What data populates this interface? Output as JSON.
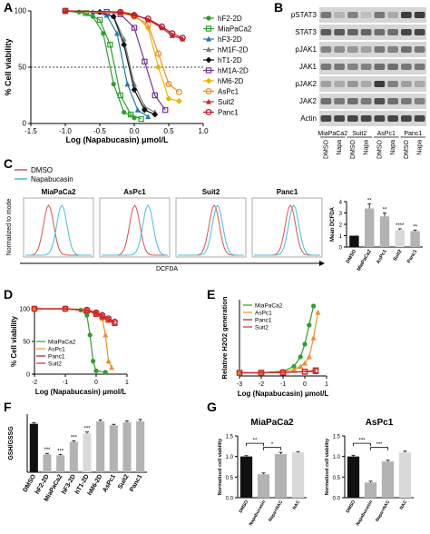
{
  "figure": {
    "panel_labels": [
      "A",
      "B",
      "C",
      "D",
      "E",
      "F",
      "G"
    ],
    "colors": {
      "hF2-2D": "#2ca02c",
      "MiaPaCa2": "#2ca02c",
      "hF3-2D": "#1f77b4",
      "hM1F-2D": "#7f7f7f",
      "hT1-2D": "#111111",
      "hM1A-2D": "#7b3294",
      "hM6-2D": "#e6b800",
      "AsPc1": "#f28e2b",
      "Suit2": "#d62728",
      "Panc1": "#b2182b",
      "DMSO": "#e05050",
      "Napabucasin": "#3fbfe0",
      "bar_black": "#111111",
      "bar_gray": "#b3b3b3",
      "bar_light": "#d9d9d9"
    }
  },
  "chart_data": [
    {
      "id": "A",
      "type": "line",
      "xlabel": "Log (Napabucasin) μmol/L",
      "ylabel": "% Cell viability",
      "xlim": [
        -1.5,
        1.0
      ],
      "ylim": [
        0,
        100
      ],
      "xticks": [
        "-1.5",
        "-1.0",
        "-0.5",
        "0.0",
        "0.5",
        "1.0"
      ],
      "yticks": [
        "0",
        "50",
        "100"
      ],
      "threshold": 50,
      "series": [
        {
          "name": "hF2-2D",
          "x": [
            -1.0,
            -0.8,
            -0.6,
            -0.45,
            -0.3,
            -0.15,
            0.0
          ],
          "y": [
            100,
            99,
            95,
            80,
            35,
            10,
            5
          ]
        },
        {
          "name": "MiaPaCa2",
          "x": [
            -1.0,
            -0.7,
            -0.5,
            -0.35,
            -0.2,
            -0.05,
            0.1
          ],
          "y": [
            100,
            98,
            92,
            70,
            25,
            8,
            4
          ]
        },
        {
          "name": "hF3-2D",
          "x": [
            -1.0,
            -0.6,
            -0.4,
            -0.25,
            -0.1,
            0.05,
            0.2
          ],
          "y": [
            100,
            99,
            96,
            80,
            35,
            12,
            6
          ]
        },
        {
          "name": "hM1F-2D",
          "x": [
            -1.0,
            -0.5,
            -0.3,
            -0.15,
            0.0,
            0.15,
            0.3
          ],
          "y": [
            100,
            99,
            95,
            75,
            35,
            15,
            10
          ]
        },
        {
          "name": "hT1-2D",
          "x": [
            -1.0,
            -0.5,
            -0.3,
            -0.15,
            0.0,
            0.15,
            0.3
          ],
          "y": [
            100,
            99,
            95,
            70,
            30,
            12,
            8
          ]
        },
        {
          "name": "hM1A-2D",
          "x": [
            -1.0,
            -0.4,
            -0.2,
            0.0,
            0.15,
            0.3,
            0.45
          ],
          "y": [
            100,
            99,
            97,
            85,
            55,
            25,
            12
          ]
        },
        {
          "name": "hM6-2D",
          "x": [
            -1.0,
            -0.2,
            0.0,
            0.2,
            0.35,
            0.5,
            0.65
          ],
          "y": [
            100,
            99,
            97,
            85,
            50,
            22,
            20
          ]
        },
        {
          "name": "AsPc1",
          "x": [
            -1.0,
            -0.2,
            0.0,
            0.2,
            0.35,
            0.5,
            0.65
          ],
          "y": [
            100,
            98,
            95,
            88,
            62,
            35,
            28
          ]
        },
        {
          "name": "Suit2",
          "x": [
            -1.0,
            -0.2,
            0.0,
            0.2,
            0.4,
            0.55,
            0.7
          ],
          "y": [
            100,
            99,
            97,
            92,
            85,
            78,
            75
          ]
        },
        {
          "name": "Panc1",
          "x": [
            -1.0,
            -0.2,
            0.0,
            0.2,
            0.4,
            0.55,
            0.7
          ],
          "y": [
            100,
            99,
            96,
            93,
            86,
            80,
            76
          ]
        }
      ]
    },
    {
      "id": "B",
      "type": "table",
      "rows": [
        "pSTAT3",
        "STAT3",
        "pJAK1",
        "JAK1",
        "pJAK2",
        "JAK2",
        "Actin"
      ],
      "groups": [
        "MiaPaCa2",
        "Suit2",
        "AsPc1",
        "Panc1"
      ],
      "lanes": [
        "DMSO",
        "Napa",
        "DMSO",
        "Napa",
        "DMSO",
        "Napa",
        "DMSO",
        "Napa"
      ]
    },
    {
      "id": "C",
      "type": "area",
      "legend": [
        "DMSO",
        "Napabucasin"
      ],
      "ylabel": "Normalized to mode",
      "xlabel": "DCFDA",
      "cells": [
        "MiaPaCa2",
        "AsPc1",
        "Suit2",
        "Panc1"
      ]
    },
    {
      "id": "C-bar",
      "type": "bar",
      "ylabel": "Mean DCFDA",
      "categories": [
        "DMSO",
        "MiaPaCa2",
        "AsPc1",
        "Suit2",
        "Panc1"
      ],
      "values": [
        1.0,
        3.4,
        2.7,
        1.5,
        1.4
      ],
      "errors": [
        0.0,
        0.4,
        0.3,
        0.1,
        0.1
      ],
      "annotations": [
        "",
        "**",
        "**",
        "****",
        "**"
      ],
      "ylim": [
        0,
        4
      ],
      "yticks": [
        "0",
        "1",
        "2",
        "3",
        "4"
      ]
    },
    {
      "id": "D",
      "type": "line",
      "xlabel": "Log (Napabucasin) μmol/L",
      "ylabel": "% Cell viability",
      "xlim": [
        -2,
        1
      ],
      "ylim": [
        0,
        100
      ],
      "xticks": [
        "-2",
        "-1",
        "0",
        "1"
      ],
      "yticks": [
        "0",
        "50",
        "100"
      ],
      "series": [
        {
          "name": "MiaPaCa2",
          "x": [
            -2.0,
            -1.0,
            -0.5,
            -0.3,
            -0.2,
            -0.1,
            0.0,
            0.3
          ],
          "y": [
            100,
            100,
            98,
            90,
            60,
            20,
            5,
            3
          ]
        },
        {
          "name": "AsPc1",
          "x": [
            -2.0,
            -1.0,
            -0.3,
            0.0,
            0.2,
            0.3,
            0.4,
            0.5
          ],
          "y": [
            100,
            100,
            99,
            95,
            85,
            60,
            20,
            10
          ]
        },
        {
          "name": "Panc1",
          "x": [
            -2.0,
            -1.0,
            -0.3,
            0.0,
            0.2,
            0.4,
            0.6
          ],
          "y": [
            100,
            100,
            98,
            94,
            90,
            85,
            80
          ]
        },
        {
          "name": "Suit2",
          "x": [
            -2.0,
            -1.0,
            -0.3,
            0.0,
            0.2,
            0.4,
            0.6
          ],
          "y": [
            100,
            100,
            97,
            92,
            88,
            83,
            78
          ]
        }
      ]
    },
    {
      "id": "E",
      "type": "line",
      "xlabel": "Log (Napabucasin) μmol/L",
      "ylabel": "Relative H2O2 generation",
      "xlim": [
        -3,
        1
      ],
      "xticks": [
        "-3",
        "-2",
        "-1",
        "0",
        "1"
      ],
      "series": [
        {
          "name": "MiaPaCa2",
          "x": [
            -3,
            -2,
            -1,
            -0.5,
            -0.2,
            0.0,
            0.2,
            0.4
          ],
          "y": [
            1,
            1,
            1.5,
            3,
            6,
            10,
            16,
            22
          ]
        },
        {
          "name": "AsPc1",
          "x": [
            -3,
            -2,
            -1,
            -0.5,
            -0.2,
            0.0,
            0.2,
            0.4,
            0.6
          ],
          "y": [
            1,
            1,
            1.3,
            2,
            3,
            4,
            6,
            12,
            20
          ]
        },
        {
          "name": "Panc1",
          "x": [
            -3,
            -2,
            -1,
            0,
            0.5
          ],
          "y": [
            1,
            1,
            1.1,
            1.3,
            1.5
          ]
        },
        {
          "name": "Suit2",
          "x": [
            -3,
            -2,
            -1,
            0,
            0.5
          ],
          "y": [
            1,
            1,
            1.1,
            1.4,
            1.8
          ]
        }
      ]
    },
    {
      "id": "F",
      "type": "bar",
      "ylabel": "GSH/GSSG",
      "categories": [
        "DMSO",
        "hF2-2D",
        "MiaPaCa2",
        "hF3-2D",
        "hT1-2D",
        "hM6-2D",
        "AsPc1",
        "Suit2",
        "Panc1"
      ],
      "values": [
        1.0,
        0.37,
        0.35,
        0.63,
        0.8,
        1.05,
        0.97,
        1.03,
        1.05
      ],
      "errors": [
        0.02,
        0.02,
        0.02,
        0.02,
        0.03,
        0.03,
        0.02,
        0.03,
        0.04
      ],
      "annotations": [
        "",
        "***",
        "***",
        "***",
        "***",
        "",
        "",
        "",
        ""
      ],
      "ylim": [
        0,
        1.2
      ]
    },
    {
      "id": "G1",
      "type": "bar",
      "title": "MiaPaCa2",
      "ylabel": "Normalized cell viability",
      "categories": [
        "DMSO",
        "Napabucasin",
        "Napa+NAC",
        "NAC"
      ],
      "values": [
        1.0,
        0.57,
        1.06,
        1.1
      ],
      "errors": [
        0.02,
        0.03,
        0.04,
        0.02
      ],
      "ylim": [
        0,
        1.5
      ],
      "yticks": [
        "0.0",
        "0.5",
        "1.0",
        "1.5"
      ],
      "brackets": [
        "**",
        "*"
      ]
    },
    {
      "id": "G2",
      "type": "bar",
      "title": "AsPc1",
      "ylabel": "Normalized cell viability",
      "categories": [
        "DMSO",
        "Napabucasin",
        "Napa+NAC",
        "NAC"
      ],
      "values": [
        1.0,
        0.37,
        0.88,
        1.1
      ],
      "errors": [
        0.03,
        0.03,
        0.03,
        0.03
      ],
      "ylim": [
        0,
        1.5
      ],
      "yticks": [
        "0.0",
        "0.5",
        "1.0",
        "1.5"
      ],
      "brackets": [
        "***",
        "***"
      ]
    }
  ]
}
